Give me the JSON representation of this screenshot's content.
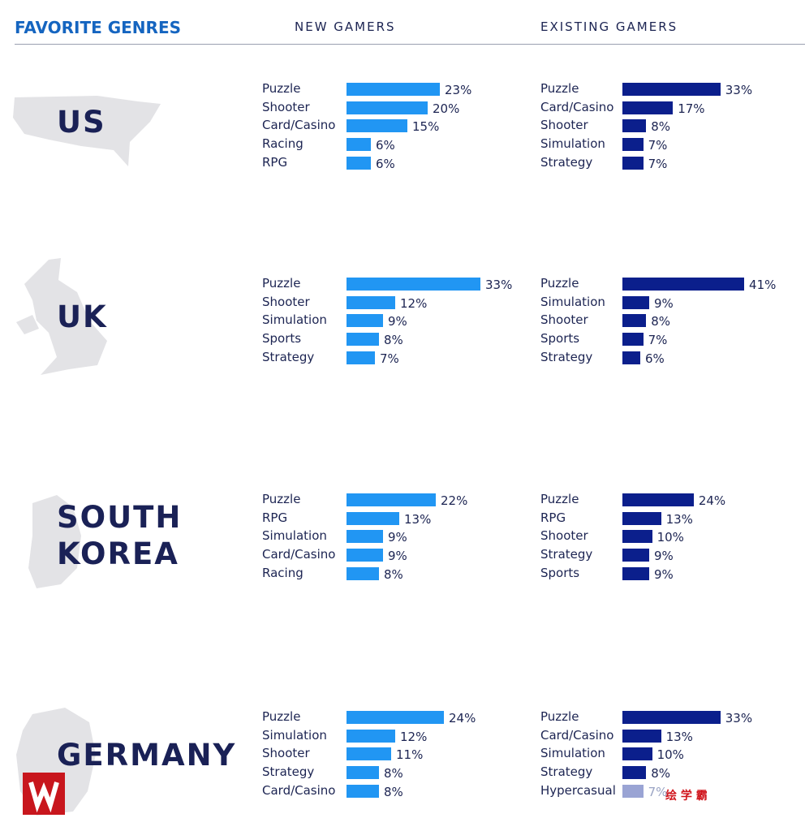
{
  "header": {
    "title": "FAVORITE GENRES",
    "columns": [
      "NEW GAMERS",
      "EXISTING GAMERS"
    ]
  },
  "watermark": "绘 学 霸",
  "countries": [
    {
      "name": "US",
      "new": {
        "categories": [
          "Puzzle",
          "Shooter",
          "Card/Casino",
          "Racing",
          "RPG"
        ],
        "values": [
          23,
          20,
          15,
          6,
          6
        ],
        "value_labels": [
          "23%",
          "20%",
          "15%",
          "6%",
          "6%"
        ]
      },
      "existing": {
        "categories": [
          "Puzzle",
          "Card/Casino",
          "Shooter",
          "Simulation",
          "Strategy"
        ],
        "values": [
          33,
          17,
          8,
          7,
          7
        ],
        "value_labels": [
          "33%",
          "17%",
          "8%",
          "7%",
          "7%"
        ]
      }
    },
    {
      "name": "UK",
      "new": {
        "categories": [
          "Puzzle",
          "Shooter",
          "Simulation",
          "Sports",
          "Strategy"
        ],
        "values": [
          33,
          12,
          9,
          8,
          7
        ],
        "value_labels": [
          "33%",
          "12%",
          "9%",
          "8%",
          "7%"
        ]
      },
      "existing": {
        "categories": [
          "Puzzle",
          "Simulation",
          "Shooter",
          "Sports",
          "Strategy"
        ],
        "values": [
          41,
          9,
          8,
          7,
          6
        ],
        "value_labels": [
          "41%",
          "9%",
          "8%",
          "7%",
          "6%"
        ]
      }
    },
    {
      "name": "SOUTH KOREA",
      "new": {
        "categories": [
          "Puzzle",
          "RPG",
          "Simulation",
          "Card/Casino",
          "Racing"
        ],
        "values": [
          22,
          13,
          9,
          9,
          8
        ],
        "value_labels": [
          "22%",
          "13%",
          "9%",
          "9%",
          "8%"
        ]
      },
      "existing": {
        "categories": [
          "Puzzle",
          "RPG",
          "Shooter",
          "Strategy",
          "Sports"
        ],
        "values": [
          24,
          13,
          10,
          9,
          9
        ],
        "value_labels": [
          "24%",
          "13%",
          "10%",
          "9%",
          "9%"
        ]
      }
    },
    {
      "name": "GERMANY",
      "new": {
        "categories": [
          "Puzzle",
          "Simulation",
          "Shooter",
          "Strategy",
          "Card/Casino"
        ],
        "values": [
          24,
          12,
          11,
          8,
          8
        ],
        "value_labels": [
          "24%",
          "12%",
          "11%",
          "8%",
          "8%"
        ]
      },
      "existing": {
        "categories": [
          "Puzzle",
          "Card/Casino",
          "Simulation",
          "Strategy",
          "Hypercasual"
        ],
        "values": [
          33,
          13,
          10,
          8,
          7
        ],
        "value_labels": [
          "33%",
          "13%",
          "10%",
          "8%",
          "7%"
        ]
      }
    }
  ]
}
